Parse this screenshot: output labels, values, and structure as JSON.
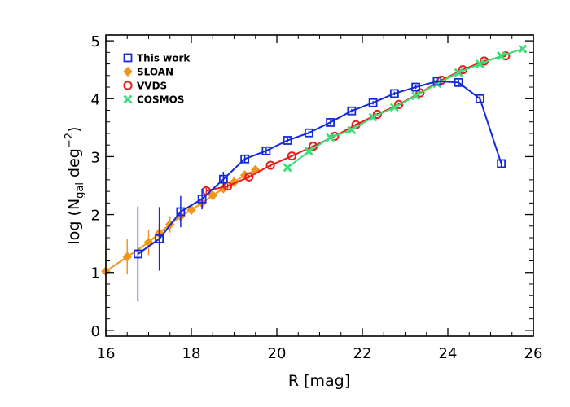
{
  "chart_data": {
    "type": "line",
    "title": "",
    "xlabel": "R [mag]",
    "ylabel": {
      "prefix": "log (N",
      "sub": "gal",
      "mid": " deg",
      "sup": "−2",
      "suffix": ")"
    },
    "xlim": [
      16,
      26
    ],
    "ylim": [
      -0.1,
      5.1
    ],
    "xticks": [
      16,
      18,
      20,
      22,
      24,
      26
    ],
    "yticks": [
      0,
      1,
      2,
      3,
      4,
      5
    ],
    "legend_position": "top-left",
    "series": [
      {
        "name": "SLOAN",
        "color": "#f0961e",
        "marker": "diamond",
        "x": [
          16.0,
          16.5,
          17.0,
          17.25,
          17.5,
          17.75,
          18.0,
          18.25,
          18.5,
          18.75,
          19.0,
          19.25,
          19.5
        ],
        "y": [
          1.02,
          1.27,
          1.52,
          1.68,
          1.83,
          1.97,
          2.08,
          2.2,
          2.33,
          2.45,
          2.56,
          2.68,
          2.77
        ],
        "err": [
          0.45,
          0.3,
          0.22,
          0.18,
          0.14,
          0.1,
          0.08,
          0.06,
          0.05,
          0.04,
          0.03,
          0.03,
          0.03
        ]
      },
      {
        "name": "VVDS",
        "color": "#e61e1e",
        "marker": "circle",
        "x": [
          18.35,
          18.85,
          19.35,
          19.85,
          20.35,
          20.85,
          21.35,
          21.85,
          22.35,
          22.85,
          23.35,
          23.85,
          24.35,
          24.85,
          25.35
        ],
        "y": [
          2.41,
          2.49,
          2.65,
          2.85,
          3.01,
          3.18,
          3.35,
          3.55,
          3.73,
          3.9,
          4.1,
          4.32,
          4.5,
          4.65,
          4.74
        ],
        "err": [
          0.05,
          0.04,
          0.03,
          0.03,
          0.02,
          0.02,
          0.02,
          0.02,
          0.02,
          0.02,
          0.02,
          0.02,
          0.02,
          0.02,
          0.02
        ]
      },
      {
        "name": "COSMOS",
        "color": "#3cdc78",
        "marker": "x",
        "x": [
          20.25,
          20.75,
          21.25,
          21.75,
          22.25,
          22.75,
          23.25,
          23.75,
          24.25,
          24.75,
          25.25,
          25.75
        ],
        "y": [
          2.81,
          3.09,
          3.33,
          3.46,
          3.68,
          3.85,
          4.05,
          4.26,
          4.45,
          4.6,
          4.74,
          4.86
        ],
        "err": [
          0.03,
          0.02,
          0.02,
          0.02,
          0.02,
          0.02,
          0.02,
          0.02,
          0.02,
          0.02,
          0.02,
          0.02
        ]
      },
      {
        "name": "This work",
        "color": "#1428dc",
        "marker": "square",
        "x": [
          16.75,
          17.25,
          17.75,
          18.25,
          18.75,
          19.25,
          19.75,
          20.25,
          20.75,
          21.25,
          21.75,
          22.25,
          22.75,
          23.25,
          23.75,
          24.25,
          24.75,
          25.25
        ],
        "y": [
          1.32,
          1.58,
          2.05,
          2.27,
          2.61,
          2.96,
          3.1,
          3.28,
          3.41,
          3.59,
          3.79,
          3.93,
          4.09,
          4.2,
          4.3,
          4.28,
          4.0,
          2.88
        ],
        "err": [
          0.82,
          0.55,
          0.27,
          0.18,
          0.13,
          0.07,
          0.05,
          0.04,
          0.03,
          0.03,
          0.03,
          0.03,
          0.03,
          0.03,
          0.03,
          0.05,
          0.05,
          0.07
        ]
      }
    ],
    "legend_order": [
      "This work",
      "SLOAN",
      "VVDS",
      "COSMOS"
    ]
  }
}
